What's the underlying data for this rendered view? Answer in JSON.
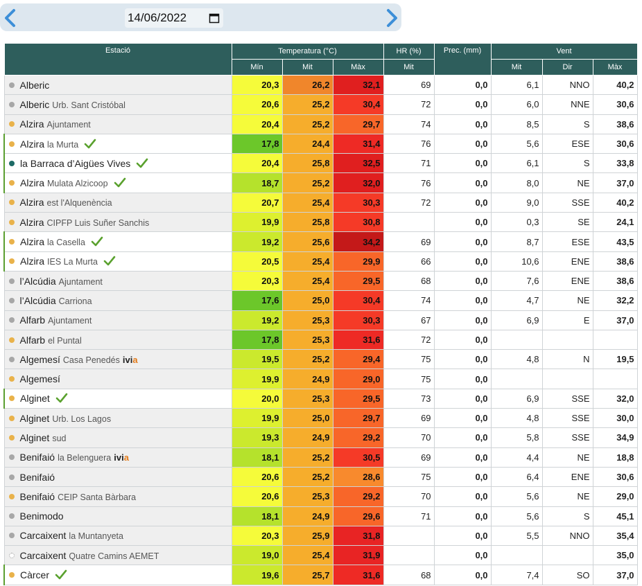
{
  "date_picker": {
    "value": "14/06/2022"
  },
  "colors": {
    "header_bg": "#2e5e5c",
    "dot_gray": "#a7a7a7",
    "dot_orange": "#e9b24a",
    "dot_teal": "#1e6b66",
    "check_green": "#5aa12e"
  },
  "headers": {
    "station": "Estació",
    "temperature": "Temperatura (°C)",
    "humidity": "HR (%)",
    "precip": "Prec. (mm)",
    "wind": "Vent",
    "min": "Mín",
    "mit": "Mit",
    "max": "Màx",
    "hr_mit": "Mit",
    "wind_mit": "Mit",
    "wind_dir": "Dir",
    "wind_max": "Màx"
  },
  "rows": [
    {
      "name": "Alberic",
      "sub": "",
      "dot": "gray",
      "check": false,
      "white": false,
      "ivia": false,
      "tmin": "20,3",
      "tmit": "26,2",
      "tmax": "32,1",
      "hr": "69",
      "prec": "0,0",
      "vmit": "6,1",
      "vdir": "NNO",
      "vmax": "40,2",
      "cmin": "#f5fb3a",
      "cmit": "#f0862b",
      "cmax": "#e01f1f"
    },
    {
      "name": "Alberic",
      "sub": "Urb. Sant Cristóbal",
      "dot": "gray",
      "check": false,
      "white": false,
      "ivia": false,
      "tmin": "20,6",
      "tmit": "25,2",
      "tmax": "30,4",
      "hr": "72",
      "prec": "0,0",
      "vmit": "6,0",
      "vdir": "NNE",
      "vmax": "30,6",
      "cmin": "#f5fb3a",
      "cmit": "#f6ad2c",
      "cmax": "#f53a27"
    },
    {
      "name": "Alzira",
      "sub": "Ajuntament",
      "dot": "orange",
      "check": false,
      "white": false,
      "ivia": false,
      "tmin": "20,4",
      "tmit": "25,2",
      "tmax": "29,7",
      "hr": "74",
      "prec": "0,0",
      "vmit": "8,5",
      "vdir": "S",
      "vmax": "38,6",
      "cmin": "#f5fb3a",
      "cmit": "#f6ad2c",
      "cmax": "#f86629"
    },
    {
      "name": "Alzira",
      "sub": "la Murta",
      "dot": "orange",
      "check": true,
      "white": true,
      "ivia": false,
      "tmin": "17,8",
      "tmit": "24,4",
      "tmax": "31,4",
      "hr": "76",
      "prec": "0,0",
      "vmit": "5,6",
      "vdir": "ESE",
      "vmax": "30,6",
      "cmin": "#6cc72a",
      "cmit": "#f6ad2c",
      "cmax": "#ee2a25"
    },
    {
      "name": "la Barraca d’Aigües Vives",
      "sub": "",
      "dot": "teal",
      "check": true,
      "white": true,
      "ivia": false,
      "tmin": "20,4",
      "tmit": "25,8",
      "tmax": "32,5",
      "hr": "71",
      "prec": "0,0",
      "vmit": "6,1",
      "vdir": "S",
      "vmax": "33,8",
      "cmin": "#f5fb3a",
      "cmit": "#f6ad2c",
      "cmax": "#e01f1f"
    },
    {
      "name": "Alzira",
      "sub": "Mulata Alzicoop",
      "dot": "orange",
      "check": true,
      "white": true,
      "ivia": false,
      "tmin": "18,7",
      "tmit": "25,2",
      "tmax": "32,0",
      "hr": "76",
      "prec": "0,0",
      "vmit": "8,0",
      "vdir": "NE",
      "vmax": "37,0",
      "cmin": "#b5e22c",
      "cmit": "#f6ad2c",
      "cmax": "#e01f1f"
    },
    {
      "name": "Alzira",
      "sub": "est l'Alquenència",
      "dot": "orange",
      "check": false,
      "white": false,
      "ivia": false,
      "tmin": "20,7",
      "tmit": "25,4",
      "tmax": "30,3",
      "hr": "72",
      "prec": "0,0",
      "vmit": "9,0",
      "vdir": "SSE",
      "vmax": "40,2",
      "cmin": "#f5fb3a",
      "cmit": "#f6ad2c",
      "cmax": "#f53a27"
    },
    {
      "name": "Alzira",
      "sub": "CIPFP Luis Suñer Sanchis",
      "dot": "orange",
      "check": false,
      "white": false,
      "ivia": false,
      "tmin": "19,9",
      "tmit": "25,8",
      "tmax": "30,8",
      "hr": "",
      "prec": "0,0",
      "vmit": "0,3",
      "vdir": "SE",
      "vmax": "24,1",
      "cmin": "#ddf02f",
      "cmit": "#f6ad2c",
      "cmax": "#f53a27"
    },
    {
      "name": "Alzira",
      "sub": "la Casella",
      "dot": "orange",
      "check": true,
      "white": true,
      "ivia": false,
      "tmin": "19,2",
      "tmit": "25,6",
      "tmax": "34,2",
      "hr": "69",
      "prec": "0,0",
      "vmit": "8,7",
      "vdir": "ESE",
      "vmax": "43,5",
      "cmin": "#cbe92d",
      "cmit": "#f6ad2c",
      "cmax": "#c41919"
    },
    {
      "name": "Alzira",
      "sub": "IES La Murta",
      "dot": "orange",
      "check": true,
      "white": true,
      "ivia": false,
      "tmin": "20,5",
      "tmit": "25,4",
      "tmax": "29,9",
      "hr": "66",
      "prec": "0,0",
      "vmit": "10,6",
      "vdir": "ENE",
      "vmax": "38,6",
      "cmin": "#f5fb3a",
      "cmit": "#f6ad2c",
      "cmax": "#f86629"
    },
    {
      "name": "l’Alcúdia",
      "sub": "Ajuntament",
      "dot": "gray",
      "check": false,
      "white": false,
      "ivia": false,
      "tmin": "20,3",
      "tmit": "25,4",
      "tmax": "29,5",
      "hr": "68",
      "prec": "0,0",
      "vmit": "7,6",
      "vdir": "ENE",
      "vmax": "38,6",
      "cmin": "#f5fb3a",
      "cmit": "#f6ad2c",
      "cmax": "#f86629"
    },
    {
      "name": "l’Alcúdia",
      "sub": "Carriona",
      "dot": "gray",
      "check": false,
      "white": false,
      "ivia": false,
      "tmin": "17,6",
      "tmit": "25,0",
      "tmax": "30,4",
      "hr": "74",
      "prec": "0,0",
      "vmit": "4,7",
      "vdir": "NE",
      "vmax": "32,2",
      "cmin": "#6cc72a",
      "cmit": "#f6ad2c",
      "cmax": "#f53a27"
    },
    {
      "name": "Alfarb",
      "sub": "Ajuntament",
      "dot": "gray",
      "check": false,
      "white": false,
      "ivia": false,
      "tmin": "19,2",
      "tmit": "25,3",
      "tmax": "30,3",
      "hr": "67",
      "prec": "0,0",
      "vmit": "6,9",
      "vdir": "E",
      "vmax": "37,0",
      "cmin": "#cbe92d",
      "cmit": "#f6ad2c",
      "cmax": "#f53a27"
    },
    {
      "name": "Alfarb",
      "sub": "el Puntal",
      "dot": "orange",
      "check": false,
      "white": false,
      "ivia": false,
      "tmin": "17,8",
      "tmit": "25,3",
      "tmax": "31,6",
      "hr": "72",
      "prec": "0,0",
      "vmit": "",
      "vdir": "",
      "vmax": "",
      "cmin": "#6cc72a",
      "cmit": "#f6ad2c",
      "cmax": "#ee2a25"
    },
    {
      "name": "Algemesí",
      "sub": "Casa Penedés",
      "dot": "gray",
      "check": false,
      "white": false,
      "ivia": true,
      "tmin": "19,5",
      "tmit": "25,2",
      "tmax": "29,4",
      "hr": "75",
      "prec": "0,0",
      "vmit": "4,8",
      "vdir": "N",
      "vmax": "19,5",
      "cmin": "#cbe92d",
      "cmit": "#f6ad2c",
      "cmax": "#f86629"
    },
    {
      "name": "Algemesí",
      "sub": "",
      "dot": "orange",
      "check": false,
      "white": false,
      "ivia": false,
      "tmin": "19,9",
      "tmit": "24,9",
      "tmax": "29,0",
      "hr": "75",
      "prec": "0,0",
      "vmit": "",
      "vdir": "",
      "vmax": "",
      "cmin": "#ddf02f",
      "cmit": "#f6ad2c",
      "cmax": "#f86629"
    },
    {
      "name": "Alginet",
      "sub": "",
      "dot": "orange",
      "check": true,
      "white": true,
      "ivia": false,
      "tmin": "20,0",
      "tmit": "25,3",
      "tmax": "29,5",
      "hr": "73",
      "prec": "0,0",
      "vmit": "6,9",
      "vdir": "SSE",
      "vmax": "32,0",
      "cmin": "#f5fb3a",
      "cmit": "#f6ad2c",
      "cmax": "#f86629"
    },
    {
      "name": "Alginet",
      "sub": "Urb. Los Lagos",
      "dot": "orange",
      "check": false,
      "white": false,
      "ivia": false,
      "tmin": "19,9",
      "tmit": "25,0",
      "tmax": "29,7",
      "hr": "69",
      "prec": "0,0",
      "vmit": "4,8",
      "vdir": "SSE",
      "vmax": "30,0",
      "cmin": "#ddf02f",
      "cmit": "#f6ad2c",
      "cmax": "#f86629"
    },
    {
      "name": "Alginet",
      "sub": "sud",
      "dot": "orange",
      "check": false,
      "white": false,
      "ivia": false,
      "tmin": "19,3",
      "tmit": "24,9",
      "tmax": "29,2",
      "hr": "70",
      "prec": "0,0",
      "vmit": "5,8",
      "vdir": "SSE",
      "vmax": "34,9",
      "cmin": "#cbe92d",
      "cmit": "#f6ad2c",
      "cmax": "#f86629"
    },
    {
      "name": "Benifaió",
      "sub": "la Belenguera",
      "dot": "gray",
      "check": false,
      "white": false,
      "ivia": true,
      "tmin": "18,1",
      "tmit": "25,2",
      "tmax": "30,5",
      "hr": "69",
      "prec": "0,0",
      "vmit": "4,4",
      "vdir": "NE",
      "vmax": "18,8",
      "cmin": "#b5e22c",
      "cmit": "#f6ad2c",
      "cmax": "#f53a27"
    },
    {
      "name": "Benifaió",
      "sub": "",
      "dot": "gray",
      "check": false,
      "white": false,
      "ivia": false,
      "tmin": "20,6",
      "tmit": "25,2",
      "tmax": "28,6",
      "hr": "75",
      "prec": "0,0",
      "vmit": "6,4",
      "vdir": "ENE",
      "vmax": "30,6",
      "cmin": "#f5fb3a",
      "cmit": "#f6ad2c",
      "cmax": "#f88a2d"
    },
    {
      "name": "Benifaió",
      "sub": "CEIP Santa Bàrbara",
      "dot": "orange",
      "check": false,
      "white": false,
      "ivia": false,
      "tmin": "20,6",
      "tmit": "25,3",
      "tmax": "29,2",
      "hr": "70",
      "prec": "0,0",
      "vmit": "5,6",
      "vdir": "NE",
      "vmax": "29,0",
      "cmin": "#f5fb3a",
      "cmit": "#f6ad2c",
      "cmax": "#f86629"
    },
    {
      "name": "Benimodo",
      "sub": "",
      "dot": "gray",
      "check": false,
      "white": false,
      "ivia": false,
      "tmin": "18,1",
      "tmit": "24,9",
      "tmax": "29,6",
      "hr": "71",
      "prec": "0,0",
      "vmit": "5,6",
      "vdir": "S",
      "vmax": "45,1",
      "cmin": "#b5e22c",
      "cmit": "#f6ad2c",
      "cmax": "#f86629"
    },
    {
      "name": "Carcaixent",
      "sub": "la Muntanyeta",
      "dot": "gray",
      "check": false,
      "white": false,
      "ivia": false,
      "tmin": "20,3",
      "tmit": "25,9",
      "tmax": "31,8",
      "hr": "",
      "prec": "0,0",
      "vmit": "5,5",
      "vdir": "NNO",
      "vmax": "35,4",
      "cmin": "#f5fb3a",
      "cmit": "#f6ad2c",
      "cmax": "#e82424"
    },
    {
      "name": "Carcaixent",
      "sub": "Quatre Camins AEMET",
      "dot": "hollow",
      "check": false,
      "white": false,
      "ivia": false,
      "tmin": "19,0",
      "tmit": "25,4",
      "tmax": "31,9",
      "hr": "",
      "prec": "0,0",
      "vmit": "",
      "vdir": "",
      "vmax": "35,0",
      "cmin": "#cbe92d",
      "cmit": "#f6ad2c",
      "cmax": "#e82424"
    },
    {
      "name": "Càrcer",
      "sub": "",
      "dot": "orange",
      "check": true,
      "white": true,
      "ivia": false,
      "tmin": "19,6",
      "tmit": "25,7",
      "tmax": "31,6",
      "hr": "68",
      "prec": "0,0",
      "vmit": "7,4",
      "vdir": "SO",
      "vmax": "37,0",
      "cmin": "#cbe92d",
      "cmit": "#f6ad2c",
      "cmax": "#ee2a25"
    }
  ],
  "ivia_label": {
    "prefix": "ivi",
    "suffix": "a"
  }
}
